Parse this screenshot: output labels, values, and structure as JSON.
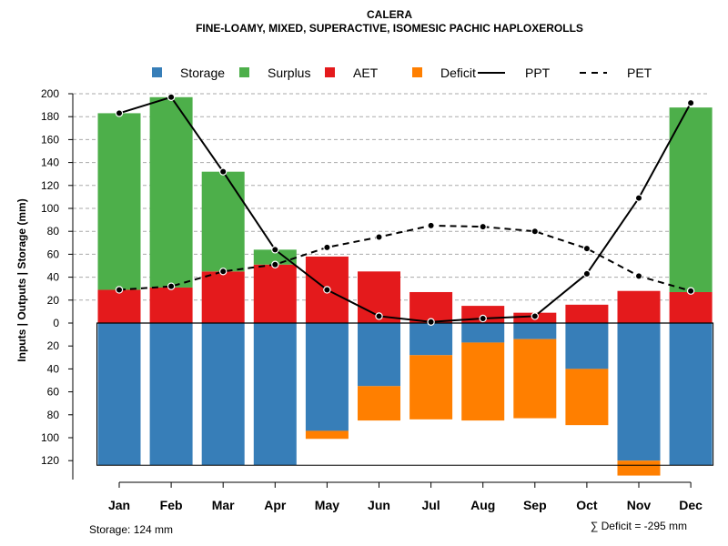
{
  "chart_data": {
    "type": "bar",
    "title": "CALERA",
    "subtitle": "FINE-LOAMY, MIXED, SUPERACTIVE, ISOMESIC PACHIC HAPLOXEROLLS",
    "ylabel": "Inputs | Outputs | Storage     (mm)",
    "ylim": [
      -124,
      200
    ],
    "grid": true,
    "categories": [
      "Jan",
      "Feb",
      "Mar",
      "Apr",
      "May",
      "Jun",
      "Jul",
      "Aug",
      "Sep",
      "Oct",
      "Nov",
      "Dec"
    ],
    "y_ticks_top": [
      0,
      20,
      40,
      60,
      80,
      100,
      120,
      140,
      160,
      180,
      200
    ],
    "y_ticks_bottom": [
      20,
      40,
      60,
      80,
      100,
      120
    ],
    "series": [
      {
        "name": "AET",
        "values": [
          29,
          31,
          45,
          51,
          58,
          45,
          27,
          15,
          9,
          16,
          28,
          27
        ]
      },
      {
        "name": "Surplus",
        "values": [
          154,
          166,
          87,
          13,
          0,
          0,
          0,
          0,
          0,
          0,
          0,
          161
        ]
      },
      {
        "name": "Storage",
        "values": [
          124,
          124,
          124,
          124,
          94,
          55,
          28,
          17,
          14,
          40,
          120,
          124
        ]
      },
      {
        "name": "Deficit",
        "values": [
          0,
          0,
          0,
          0,
          7,
          30,
          56,
          68,
          69,
          49,
          13,
          0
        ]
      },
      {
        "name": "PPT",
        "values": [
          183,
          197,
          132,
          64,
          29,
          6,
          1,
          4,
          6,
          43,
          109,
          192
        ]
      },
      {
        "name": "PET",
        "values": [
          29,
          32,
          45,
          51,
          66,
          75,
          85,
          84,
          80,
          65,
          41,
          28
        ]
      }
    ],
    "colors": {
      "Storage": "#377eb8",
      "Surplus": "#4daf4a",
      "AET": "#e41a1c",
      "Deficit": "#ff7f00",
      "PPT": "#000000",
      "PET": "#000000"
    },
    "legend": [
      {
        "label": "Storage",
        "key": "Storage",
        "kind": "box"
      },
      {
        "label": "Surplus",
        "key": "Surplus",
        "kind": "box"
      },
      {
        "label": "AET",
        "key": "AET",
        "kind": "box"
      },
      {
        "label": "Deficit",
        "key": "Deficit",
        "kind": "box"
      },
      {
        "label": "PPT",
        "key": "PPT",
        "kind": "line"
      },
      {
        "label": "PET",
        "key": "PET",
        "kind": "dash"
      }
    ],
    "legend_position": "top",
    "footer_left": "Storage: 124 mm",
    "footer_right": "∑ Deficit = -295 mm"
  }
}
